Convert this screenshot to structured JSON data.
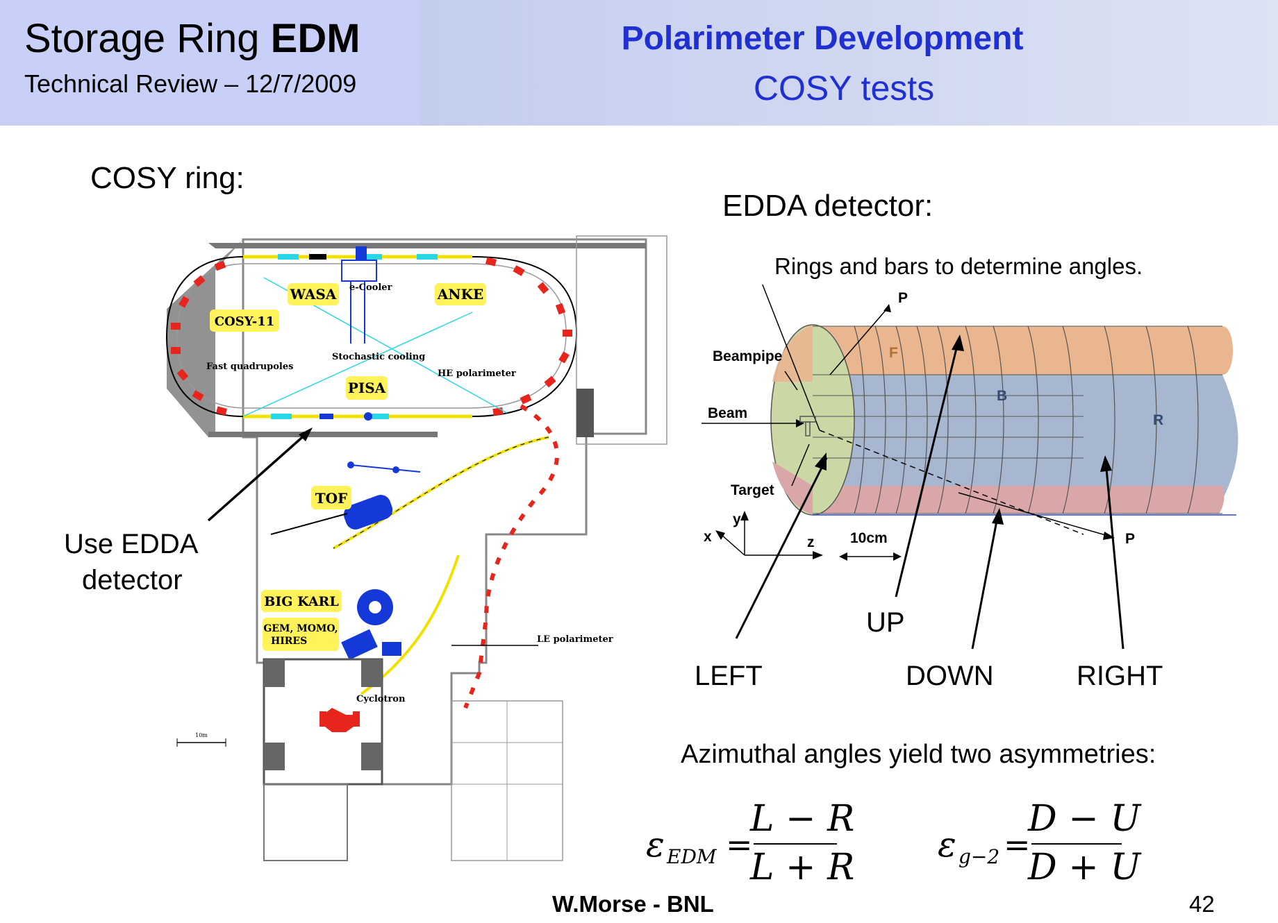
{
  "header": {
    "title_prefix": "Storage Ring",
    "title_bold": "EDM",
    "subtitle": "Technical Review – 12/7/2009",
    "slide_title": "Polarimeter Development",
    "slide_subtitle": "COSY tests"
  },
  "left": {
    "heading": "COSY ring:",
    "callout_line1": "Use EDDA",
    "callout_line2": "detector",
    "map_labels": {
      "wasa": "WASA",
      "ecooler": "e-Cooler",
      "anke": "ANKE",
      "cosy11": "COSY-11",
      "fast_quad": "Fast quadrupoles",
      "stochastic": "Stochastic cooling",
      "he_pol": "HE polarimeter",
      "pisa": "PISA",
      "tof": "TOF",
      "bigkarl": "BIG KARL",
      "gem": "GEM, MOMO,",
      "hires": "HIRES",
      "le_pol": "LE polarimeter",
      "cyclotron": "Cyclotron",
      "scale": "10m"
    }
  },
  "right": {
    "heading": "EDDA detector:",
    "caption": "Rings and bars to determine angles.",
    "det_labels": {
      "p_top": "P",
      "beampipe": "Beampipe",
      "beam": "Beam",
      "target": "Target",
      "f": "F",
      "b": "B",
      "r": "R",
      "y": "y",
      "x": "x",
      "z": "z",
      "scale": "10cm",
      "p_bottom": "P"
    },
    "dir_labels": {
      "up": "UP",
      "left": "LEFT",
      "down": "DOWN",
      "right": "RIGHT"
    },
    "asym_text": "Azimuthal angles yield two asymmetries:",
    "eq1": {
      "lhs": "ε",
      "sub": "EDM",
      "num": "L − R",
      "den": "L + R"
    },
    "eq2": {
      "lhs": "ε",
      "sub": "g−2",
      "num": "D − U",
      "den": "D + U"
    }
  },
  "footer": {
    "author": "W.Morse - BNL",
    "page": "42"
  },
  "colors": {
    "header_blue": "#1f2fd2",
    "magnet_red": "#e8251c",
    "label_yellow": "#fff25a",
    "detector_orange": "#e9b690",
    "detector_blue": "#a7b7cf",
    "detector_green": "#cbd8a5",
    "detector_pink": "#d9a7a7"
  }
}
